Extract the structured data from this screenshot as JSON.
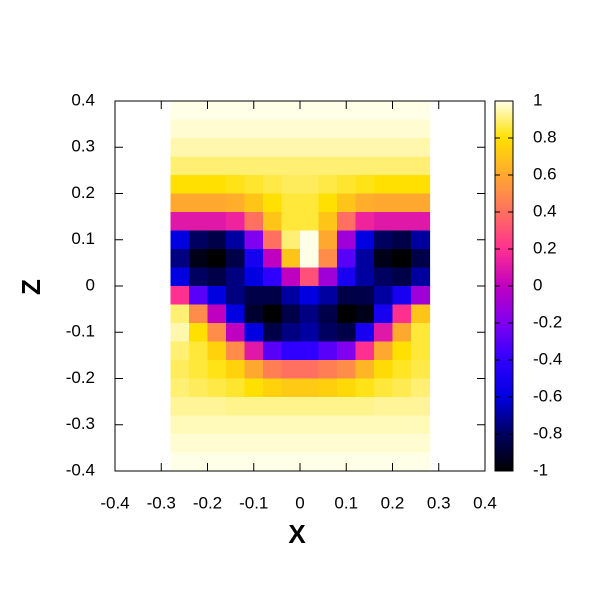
{
  "chart_data": {
    "type": "heatmap",
    "xlabel": "X",
    "ylabel": "Z",
    "xlim": [
      -0.4,
      0.4
    ],
    "ylim": [
      -0.4,
      0.4
    ],
    "xticks": [
      -0.4,
      -0.3,
      -0.2,
      -0.1,
      0,
      0.1,
      0.2,
      0.3,
      0.4
    ],
    "yticks": [
      -0.4,
      -0.3,
      -0.2,
      -0.1,
      0,
      0.1,
      0.2,
      0.3,
      0.4
    ],
    "cblim": [
      -1,
      1
    ],
    "cbticks": [
      -1,
      -0.8,
      -0.6,
      -0.4,
      -0.2,
      0,
      0.2,
      0.4,
      0.6,
      0.8,
      1
    ],
    "colormap": [
      "#000000",
      "#000060",
      "#0000e0",
      "#3000ff",
      "#8000f0",
      "#c000c0",
      "#ff3090",
      "#ff7060",
      "#ffa830",
      "#ffe000",
      "#ffffe8"
    ],
    "x": [
      -0.26,
      -0.22,
      -0.18,
      -0.14,
      -0.1,
      -0.06,
      -0.02,
      0.02,
      0.06,
      0.1,
      0.14,
      0.18,
      0.22,
      0.26
    ],
    "y": [
      0.38,
      0.34,
      0.3,
      0.26,
      0.22,
      0.18,
      0.14,
      0.1,
      0.06,
      0.02,
      -0.02,
      -0.06,
      -0.1,
      -0.14,
      -0.18,
      -0.22,
      -0.26,
      -0.3,
      -0.34,
      -0.38
    ],
    "z": [
      [
        1,
        1,
        1,
        1,
        1,
        1,
        1,
        1,
        1,
        1,
        1,
        1,
        1,
        1
      ],
      [
        0.98,
        0.98,
        0.98,
        0.98,
        0.98,
        0.98,
        0.98,
        0.98,
        0.98,
        0.98,
        0.98,
        0.98,
        0.98,
        0.98
      ],
      [
        0.95,
        0.95,
        0.95,
        0.95,
        0.95,
        0.95,
        0.95,
        0.95,
        0.95,
        0.95,
        0.95,
        0.95,
        0.95,
        0.95
      ],
      [
        0.9,
        0.9,
        0.9,
        0.9,
        0.9,
        0.9,
        0.9,
        0.9,
        0.9,
        0.9,
        0.9,
        0.9,
        0.9,
        0.9
      ],
      [
        0.8,
        0.8,
        0.8,
        0.82,
        0.84,
        0.86,
        0.88,
        0.88,
        0.86,
        0.84,
        0.82,
        0.8,
        0.8,
        0.8
      ],
      [
        0.6,
        0.6,
        0.6,
        0.62,
        0.7,
        0.8,
        0.85,
        0.85,
        0.8,
        0.7,
        0.62,
        0.6,
        0.6,
        0.6
      ],
      [
        0.1,
        0.1,
        0.1,
        0.15,
        0.4,
        0.7,
        0.85,
        0.85,
        0.7,
        0.4,
        0.15,
        0.1,
        0.1,
        0.1
      ],
      [
        -0.6,
        -0.8,
        -0.85,
        -0.7,
        -0.2,
        0.4,
        0.9,
        1,
        0.6,
        -0.1,
        -0.6,
        -0.8,
        -0.85,
        -0.7
      ],
      [
        -0.75,
        -0.95,
        -1,
        -0.85,
        -0.5,
        0,
        0.7,
        1,
        0.5,
        -0.3,
        -0.7,
        -0.95,
        -1,
        -0.85
      ],
      [
        -0.6,
        -0.8,
        -0.85,
        -0.75,
        -0.6,
        -0.4,
        0,
        0.3,
        -0.1,
        -0.5,
        -0.7,
        -0.8,
        -0.85,
        -0.7
      ],
      [
        0.2,
        -0.3,
        -0.6,
        -0.75,
        -0.85,
        -0.85,
        -0.7,
        -0.6,
        -0.7,
        -0.85,
        -0.85,
        -0.7,
        -0.5,
        -0.1
      ],
      [
        0.9,
        0.5,
        0,
        -0.6,
        -0.9,
        -1,
        -0.85,
        -0.75,
        -0.85,
        -1,
        -0.95,
        -0.5,
        0.2,
        0.7
      ],
      [
        0.95,
        0.8,
        0.5,
        0,
        -0.6,
        -0.85,
        -0.75,
        -0.7,
        -0.8,
        -0.85,
        -0.5,
        0.1,
        0.6,
        0.85
      ],
      [
        0.9,
        0.85,
        0.75,
        0.5,
        0.1,
        -0.3,
        -0.4,
        -0.4,
        -0.3,
        -0.2,
        0.2,
        0.6,
        0.8,
        0.85
      ],
      [
        0.88,
        0.85,
        0.82,
        0.75,
        0.6,
        0.45,
        0.4,
        0.4,
        0.45,
        0.5,
        0.65,
        0.78,
        0.83,
        0.86
      ],
      [
        0.9,
        0.88,
        0.86,
        0.84,
        0.8,
        0.75,
        0.72,
        0.72,
        0.74,
        0.77,
        0.82,
        0.85,
        0.87,
        0.9
      ],
      [
        0.93,
        0.93,
        0.93,
        0.92,
        0.92,
        0.92,
        0.92,
        0.92,
        0.92,
        0.92,
        0.92,
        0.93,
        0.93,
        0.93
      ],
      [
        0.96,
        0.96,
        0.96,
        0.96,
        0.96,
        0.96,
        0.96,
        0.96,
        0.96,
        0.96,
        0.96,
        0.96,
        0.96,
        0.96
      ],
      [
        0.98,
        0.98,
        0.98,
        0.98,
        0.98,
        0.98,
        0.98,
        0.98,
        0.98,
        0.98,
        0.98,
        0.98,
        0.98,
        0.98
      ],
      [
        1,
        1,
        1,
        1,
        1,
        1,
        1,
        1,
        1,
        1,
        1,
        1,
        1,
        1
      ]
    ]
  }
}
